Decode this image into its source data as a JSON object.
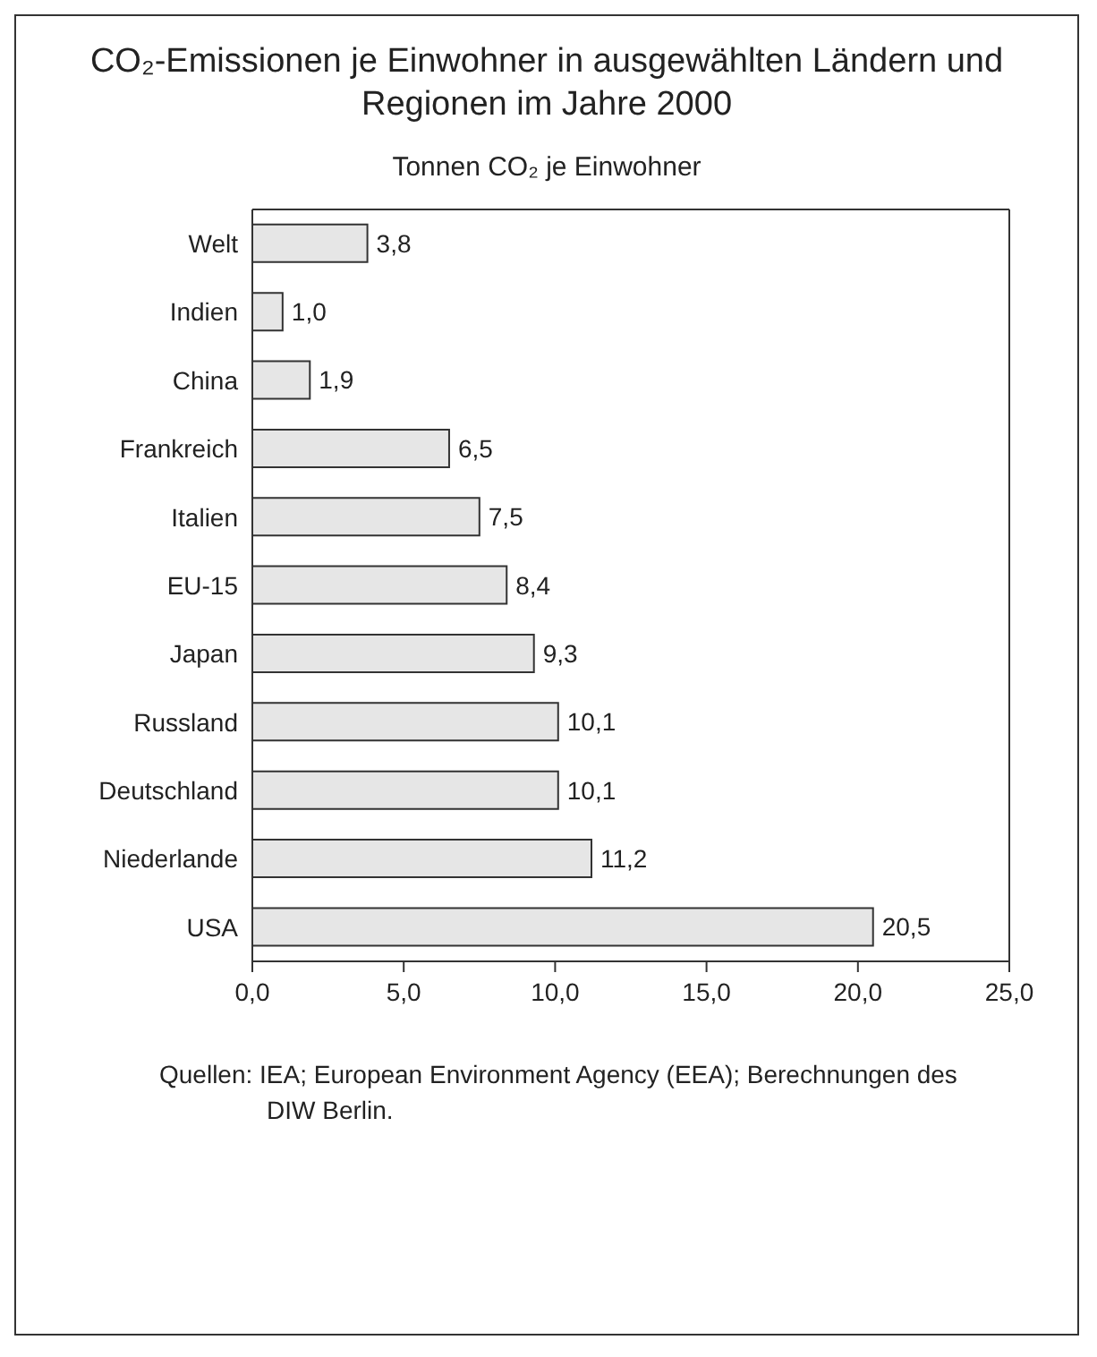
{
  "chart_data": {
    "type": "bar",
    "orientation": "horizontal",
    "title": "CO₂-Emissionen je Einwohner in ausgewählten Ländern und Regionen im Jahre 2000",
    "subtitle": "Tonnen CO₂ je Einwohner",
    "categories": [
      "Welt",
      "Indien",
      "China",
      "Frankreich",
      "Italien",
      "EU-15",
      "Japan",
      "Russland",
      "Deutschland",
      "Niederlande",
      "USA"
    ],
    "values": [
      3.8,
      1.0,
      1.9,
      6.5,
      7.5,
      8.4,
      9.3,
      10.1,
      10.1,
      11.2,
      20.5
    ],
    "value_labels": [
      "3,8",
      "1,0",
      "1,9",
      "6,5",
      "7,5",
      "8,4",
      "9,3",
      "10,1",
      "10,1",
      "11,2",
      "20,5"
    ],
    "color": "#e6e6e6",
    "xlim": [
      0,
      25
    ],
    "xticks": [
      {
        "value": 0,
        "label": "0,0"
      },
      {
        "value": 5,
        "label": "5,0"
      },
      {
        "value": 10,
        "label": "10,0"
      },
      {
        "value": 15,
        "label": "15,0"
      },
      {
        "value": 20,
        "label": "20,0"
      },
      {
        "value": 25,
        "label": "25,0"
      }
    ],
    "grid": false,
    "legend": false,
    "annotations": [
      "Quellen: IEA; European Environment Agency (EEA); Berechnungen des DIW Berlin."
    ]
  }
}
